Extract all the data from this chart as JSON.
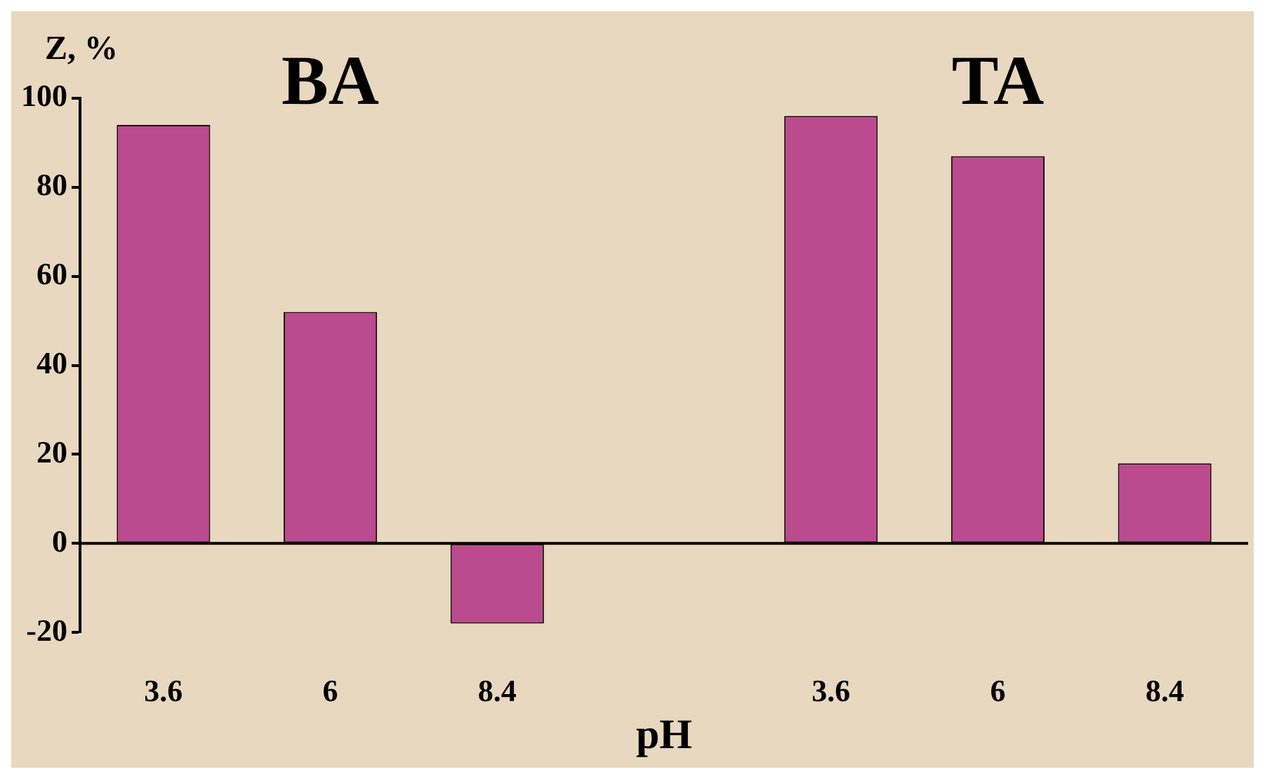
{
  "chart_data": {
    "type": "bar",
    "ylabel": "Z, %",
    "xlabel": "pH",
    "categories": [
      "3.6",
      "6",
      "8.4",
      null,
      "3.6",
      "6",
      "8.4"
    ],
    "values": [
      94,
      52,
      -18,
      null,
      96,
      87,
      18
    ],
    "color": "#bc4a8e",
    "ylim": [
      -20,
      100
    ],
    "yticks": [
      -20,
      0,
      20,
      40,
      60,
      80,
      100
    ],
    "annotations": [
      "BA",
      "TA"
    ],
    "ref_lines": [
      {
        "axis": "y",
        "value": 0,
        "color": "#000000"
      }
    ],
    "grid": false,
    "legend": false
  }
}
